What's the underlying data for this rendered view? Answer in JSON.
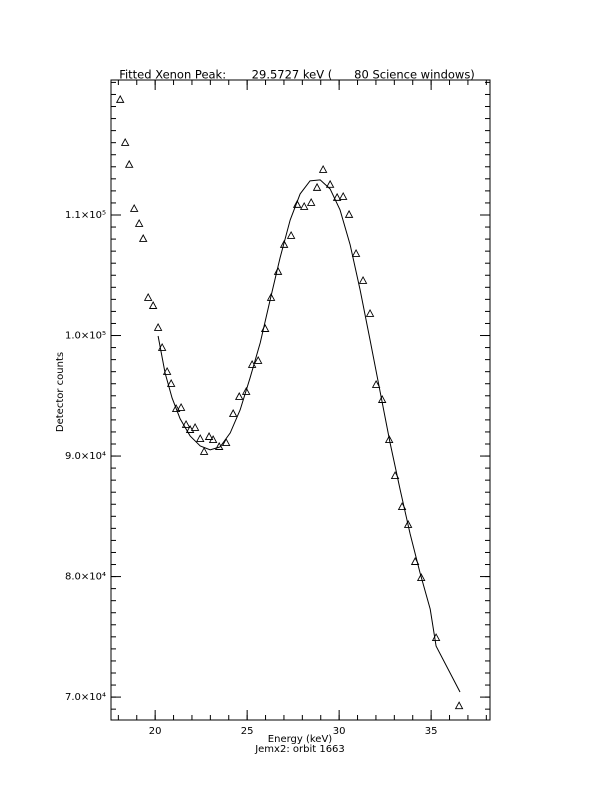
{
  "chart_data": {
    "type": "scatter",
    "title": "Fitted Xenon Peak:       29.5727 keV (      80 Science windows)",
    "x_label": "Energy (keV)",
    "subtitle": "Jemx2: orbit 1663",
    "y_label": "Detector counts",
    "xlim": [
      17.6,
      38.2
    ],
    "ylim": [
      68100,
      121200
    ],
    "xticks": [
      20,
      25,
      30,
      35
    ],
    "yticks": [
      {
        "value": 70000,
        "label": "7.0×10⁴"
      },
      {
        "value": 80000,
        "label": "8.0×10⁴"
      },
      {
        "value": 90000,
        "label": "9.0×10⁴"
      },
      {
        "value": 100000,
        "label": "1.0×10⁵"
      },
      {
        "value": 110000,
        "label": "1.1×10⁵"
      }
    ],
    "color": "#000000",
    "series": [
      {
        "style": "triangle",
        "x": [
          18.1,
          18.37,
          18.59,
          18.86,
          19.13,
          19.35,
          19.62,
          19.89,
          20.16,
          20.38,
          20.65,
          20.87,
          21.14,
          21.41,
          21.68,
          21.9,
          22.17,
          22.45,
          22.66,
          22.93,
          23.15,
          23.48,
          23.86,
          24.24,
          24.57,
          24.95,
          25.27,
          25.6,
          25.98,
          26.3,
          26.68,
          27.01,
          27.39,
          27.72,
          28.1,
          28.48,
          28.8,
          29.13,
          29.51,
          29.89,
          30.22,
          30.54,
          30.92,
          31.3,
          31.68,
          32.01,
          32.34,
          32.72,
          33.04,
          33.42,
          33.75,
          34.13,
          34.46,
          35.27,
          36.52
        ],
        "values": [
          119550,
          115980,
          114160,
          110500,
          109260,
          108010,
          103120,
          102450,
          100630,
          98970,
          96980,
          95980,
          93900,
          93990,
          92580,
          92160,
          92330,
          91410,
          90340,
          91580,
          91330,
          90750,
          91080,
          93490,
          94900,
          95320,
          97560,
          97890,
          100540,
          103120,
          105280,
          107520,
          108260,
          110840,
          110670,
          111000,
          112250,
          113740,
          112500,
          111420,
          111500,
          110010,
          106770,
          104530,
          101790,
          95900,
          94650,
          91330,
          88340,
          85770,
          84280,
          81210,
          79880,
          74900,
          69250
        ]
      },
      {
        "style": "line",
        "x": [
          20.16,
          20.54,
          20.92,
          21.36,
          21.9,
          22.45,
          22.99,
          23.53,
          24.08,
          24.62,
          25.16,
          25.71,
          26.25,
          26.79,
          27.34,
          27.88,
          28.42,
          28.97,
          29.51,
          30.05,
          30.6,
          31.14,
          31.68,
          32.23,
          32.77,
          33.32,
          33.86,
          34.4,
          34.95,
          35.27,
          36.57
        ],
        "values": [
          99960,
          96890,
          94820,
          93080,
          91670,
          90840,
          90510,
          90760,
          91920,
          93830,
          96490,
          99390,
          102960,
          106450,
          109590,
          111750,
          112830,
          112910,
          112160,
          110420,
          107520,
          103790,
          99640,
          95320,
          91080,
          87180,
          83530,
          80300,
          77300,
          74230,
          70420
        ]
      }
    ]
  }
}
